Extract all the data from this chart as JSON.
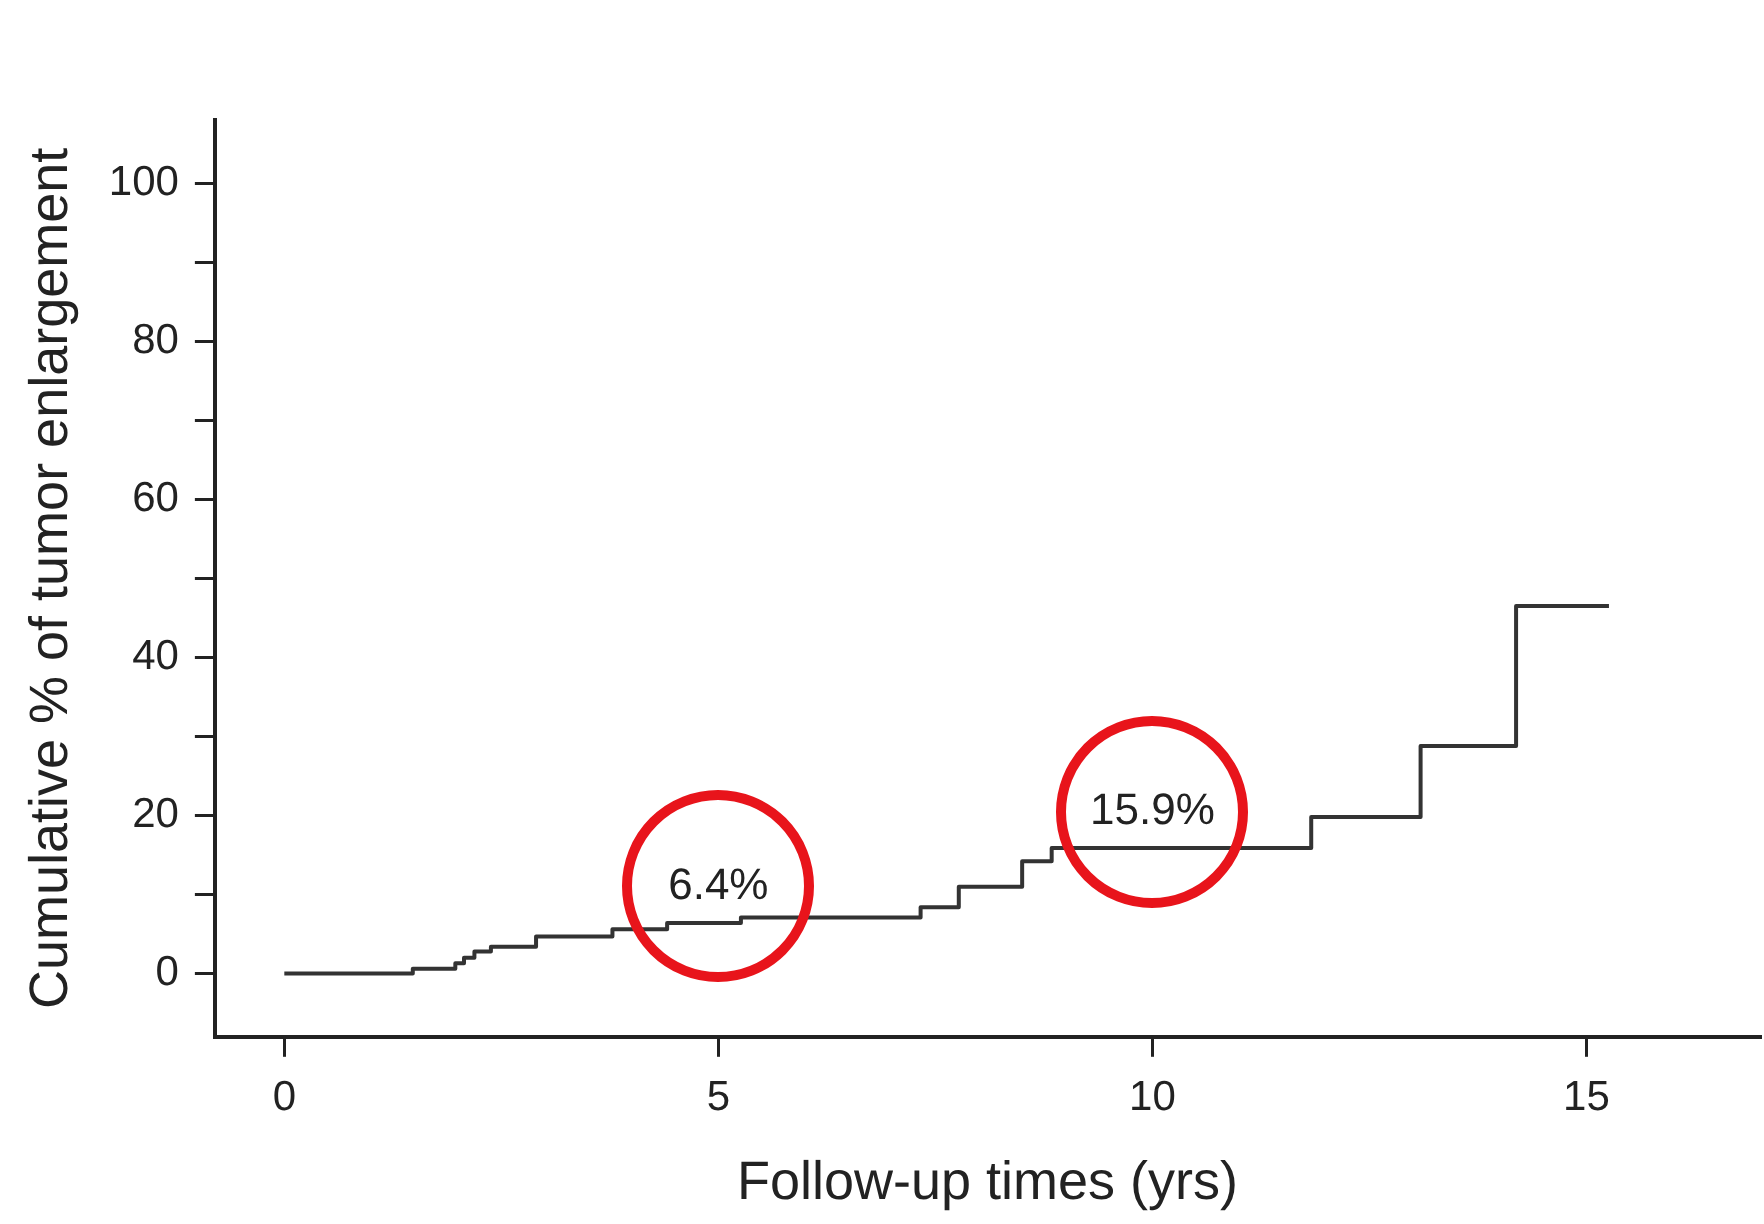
{
  "chart_data": {
    "type": "step",
    "xlabel": "Follow-up times (yrs)",
    "ylabel": "Cumulative % of tumor enlargement",
    "x": [
      0,
      1.48,
      1.97,
      2.07,
      2.19,
      2.38,
      2.9,
      3.78,
      4.41,
      5.26,
      7.33,
      7.77,
      8.5,
      8.84,
      11.83,
      13.09,
      14.19,
      15.26
    ],
    "series": [
      {
        "color": "#333333",
        "values": [
          0,
          0.6,
          1.3,
          2.0,
          2.8,
          3.4,
          4.7,
          5.6,
          6.4,
          7.1,
          8.4,
          11.0,
          14.2,
          15.9,
          19.8,
          28.8,
          46.5,
          46.5
        ]
      }
    ],
    "xlim": [
      -0.8,
      17
    ],
    "xticks": [
      0,
      5,
      10,
      15
    ],
    "ylim": [
      -8,
      108
    ],
    "yticks": [
      0,
      {
        "value": 10,
        "label": null
      },
      20,
      {
        "value": 30,
        "label": null
      },
      40,
      {
        "value": 50,
        "label": null
      },
      60,
      {
        "value": 70,
        "label": null
      },
      80,
      {
        "value": 90,
        "label": null
      },
      100
    ],
    "annotations": [
      {
        "text": "6.4%",
        "x": 5,
        "y": 6.4
      },
      {
        "text": "15.9%",
        "x": 10,
        "y": 15.9
      }
    ],
    "grid": false,
    "legend": false,
    "marker": "none",
    "line_style": "solid"
  }
}
